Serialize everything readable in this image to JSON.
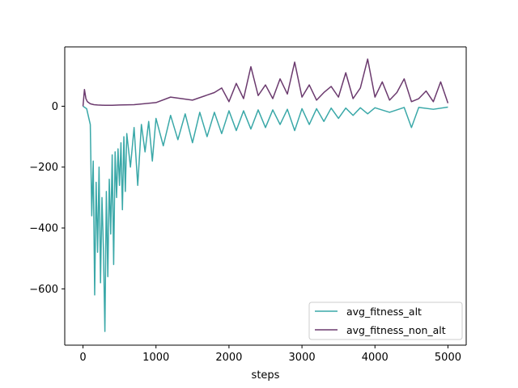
{
  "chart_data": {
    "type": "line",
    "title": "",
    "xlabel": "steps",
    "ylabel": "",
    "xlim": [
      -250,
      5250
    ],
    "ylim": [
      -785,
      195
    ],
    "xticks": [
      0,
      1000,
      2000,
      3000,
      4000,
      5000
    ],
    "yticks": [
      -600,
      -400,
      -200,
      0
    ],
    "xtick_labels": [
      "0",
      "1000",
      "2000",
      "3000",
      "4000",
      "5000"
    ],
    "ytick_labels": [
      "−600",
      "−400",
      "−200",
      "0"
    ],
    "grid": false,
    "legend_position": "lower-right",
    "series": [
      {
        "name": "avg_fitness_alt",
        "color": "#3aa8a8",
        "x": [
          0,
          50,
          100,
          120,
          140,
          160,
          180,
          200,
          220,
          240,
          260,
          280,
          300,
          320,
          340,
          360,
          380,
          400,
          420,
          440,
          460,
          480,
          500,
          520,
          540,
          560,
          580,
          600,
          650,
          700,
          750,
          800,
          850,
          900,
          950,
          1000,
          1100,
          1200,
          1300,
          1400,
          1500,
          1600,
          1700,
          1800,
          1900,
          2000,
          2100,
          2200,
          2300,
          2400,
          2500,
          2600,
          2700,
          2800,
          2900,
          3000,
          3100,
          3200,
          3300,
          3400,
          3500,
          3600,
          3700,
          3800,
          3900,
          4000,
          4200,
          4400,
          4500,
          4600,
          4800,
          5000
        ],
        "values": [
          0,
          -8,
          -60,
          -360,
          -180,
          -620,
          -250,
          -480,
          -200,
          -580,
          -300,
          -470,
          -740,
          -280,
          -560,
          -240,
          -420,
          -160,
          -520,
          -150,
          -300,
          -140,
          -260,
          -120,
          -340,
          -100,
          -280,
          -90,
          -200,
          -70,
          -260,
          -60,
          -150,
          -50,
          -180,
          -40,
          -130,
          -30,
          -110,
          -25,
          -120,
          -20,
          -100,
          -20,
          -90,
          -15,
          -80,
          -15,
          -75,
          -12,
          -70,
          -12,
          -60,
          -10,
          -80,
          -8,
          -60,
          -8,
          -50,
          -6,
          -40,
          -6,
          -30,
          -5,
          -25,
          -5,
          -20,
          -4,
          -70,
          -4,
          -10,
          -3
        ]
      },
      {
        "name": "avg_fitness_non_alt",
        "color": "#6b3a6e",
        "x": [
          0,
          20,
          40,
          60,
          100,
          150,
          200,
          300,
          400,
          500,
          700,
          1000,
          1200,
          1500,
          1800,
          1900,
          2000,
          2100,
          2200,
          2300,
          2400,
          2500,
          2600,
          2700,
          2800,
          2900,
          3000,
          3100,
          3200,
          3300,
          3400,
          3500,
          3600,
          3700,
          3800,
          3900,
          4000,
          4100,
          4200,
          4300,
          4400,
          4500,
          4600,
          4700,
          4800,
          4900,
          5000
        ],
        "values": [
          0,
          55,
          25,
          15,
          8,
          5,
          4,
          3,
          3,
          4,
          5,
          12,
          30,
          20,
          45,
          60,
          15,
          75,
          25,
          130,
          35,
          70,
          25,
          90,
          40,
          145,
          30,
          70,
          20,
          45,
          65,
          30,
          110,
          25,
          60,
          155,
          30,
          80,
          20,
          45,
          90,
          15,
          25,
          50,
          15,
          80,
          10
        ]
      }
    ]
  }
}
